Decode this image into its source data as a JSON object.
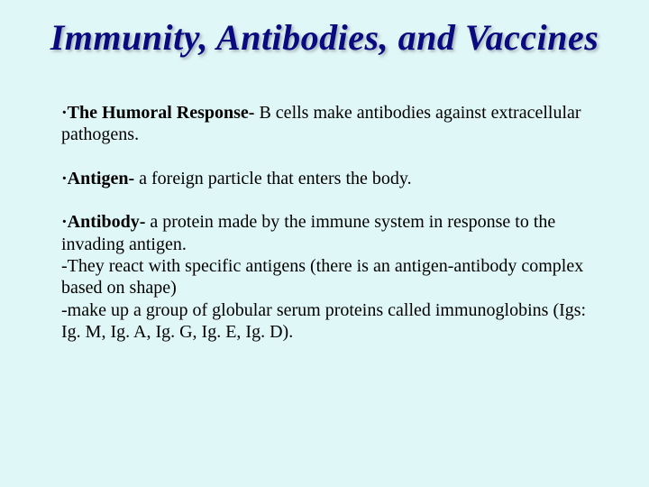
{
  "title": "Immunity, Antibodies, and Vaccines",
  "colors": {
    "background": "#e0f7f7",
    "title_color": "#0a0a80",
    "text_color": "#000000",
    "title_shadow": "rgba(100,100,120,0.5)"
  },
  "typography": {
    "title_fontsize": 40,
    "title_style": "italic bold",
    "body_fontsize": 20,
    "font_family": "Times New Roman"
  },
  "entries": [
    {
      "term": "The Humoral Response-",
      "def": " B cells make antibodies against extracellular pathogens."
    },
    {
      "term": "Antigen-",
      "def": " a foreign particle that enters the body."
    },
    {
      "term": "Antibody-",
      "def": " a protein made by the immune system in response to the invading antigen.",
      "sub": [
        " -They react with specific antigens (there is an antigen-antibody complex based on shape)",
        "-make up a group of globular serum proteins called immunoglobins (Igs: Ig. M, Ig. A, Ig. G, Ig. E, Ig. D)."
      ]
    }
  ],
  "bullet_char": "·"
}
